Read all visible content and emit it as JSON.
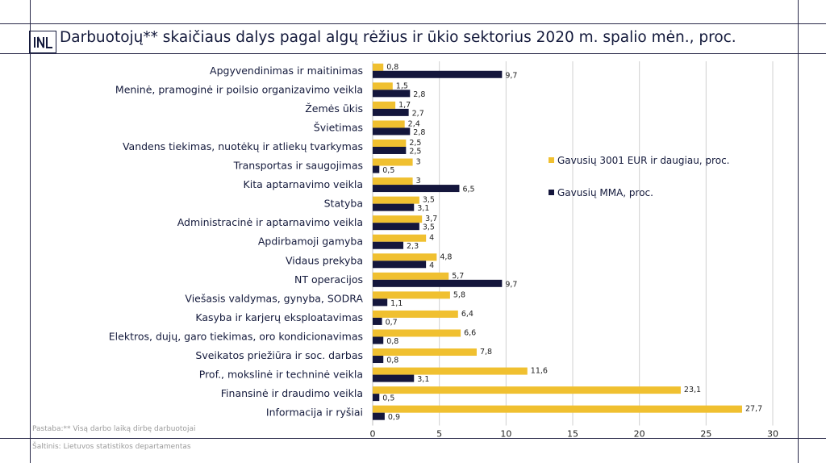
{
  "title": "Darbuotojų** skaičiaus dalys pagal algų rėžius ir ūkio sektorius 2020 m. spalio mėn., proc.",
  "note": "Pastaba:** Visą darbo laiką dirbę darbuotojai",
  "source": "Šaltinis: Lietuvos statistikos departamentas",
  "colors": {
    "high": "#f0c030",
    "mma": "#14163c",
    "grid": "#d0d0d0",
    "frame": "#2a2a4a"
  },
  "chart_data": {
    "type": "bar",
    "orientation": "horizontal",
    "categories": [
      "Apgyvendinimas ir maitinimas",
      "Meninė, pramoginė ir poilsio organizavimo veikla",
      "Žemės ūkis",
      "Švietimas",
      "Vandens tiekimas, nuotėkų ir atliekų tvarkymas",
      "Transportas ir saugojimas",
      "Kita aptarnavimo veikla",
      "Statyba",
      "Administracinė ir aptarnavimo veikla",
      "Apdirbamoji gamyba",
      "Vidaus prekyba",
      "NT operacijos",
      "Viešasis valdymas, gynyba, SODRA",
      "Kasyba ir karjerų eksploatavimas",
      "Elektros, dujų, garo tiekimas, oro kondicionavimas",
      "Sveikatos priežiūra ir soc. darbas",
      "Prof., mokslinė ir techninė veikla",
      "Finansinė ir draudimo veikla",
      "Informacija ir ryšiai"
    ],
    "series": [
      {
        "name": "Gavusių 3001 EUR ir daugiau, proc.",
        "color": "#f0c030",
        "values": [
          0.8,
          1.5,
          1.7,
          2.4,
          2.5,
          3,
          3,
          3.5,
          3.7,
          4,
          4.8,
          5.7,
          5.8,
          6.4,
          6.6,
          7.8,
          11.6,
          23.1,
          27.7
        ],
        "labels": [
          "0,8",
          "1,5",
          "1,7",
          "2,4",
          "2,5",
          "3",
          "3",
          "3,5",
          "3,7",
          "4",
          "4,8",
          "5,7",
          "5,8",
          "6,4",
          "6,6",
          "7,8",
          "11,6",
          "23,1",
          "27,7"
        ]
      },
      {
        "name": "Gavusių MMA, proc.",
        "color": "#14163c",
        "values": [
          9.7,
          2.8,
          2.7,
          2.8,
          2.5,
          0.5,
          6.5,
          3.1,
          3.5,
          2.3,
          4,
          9.7,
          1.1,
          0.7,
          0.8,
          0.8,
          3.1,
          0.5,
          0.9
        ],
        "labels": [
          "9,7",
          "2,8",
          "2,7",
          "2,8",
          "2,5",
          "0,5",
          "6,5",
          "3,1",
          "3,5",
          "2,3",
          "4",
          "9,7",
          "1,1",
          "0,7",
          "0,8",
          "0,8",
          "3,1",
          "0,5",
          "0,9"
        ]
      }
    ],
    "xlim": [
      0,
      30
    ],
    "xticks": [
      "0",
      "5",
      "10",
      "15",
      "20",
      "25",
      "30"
    ],
    "grid": true,
    "legend_position": "right"
  }
}
